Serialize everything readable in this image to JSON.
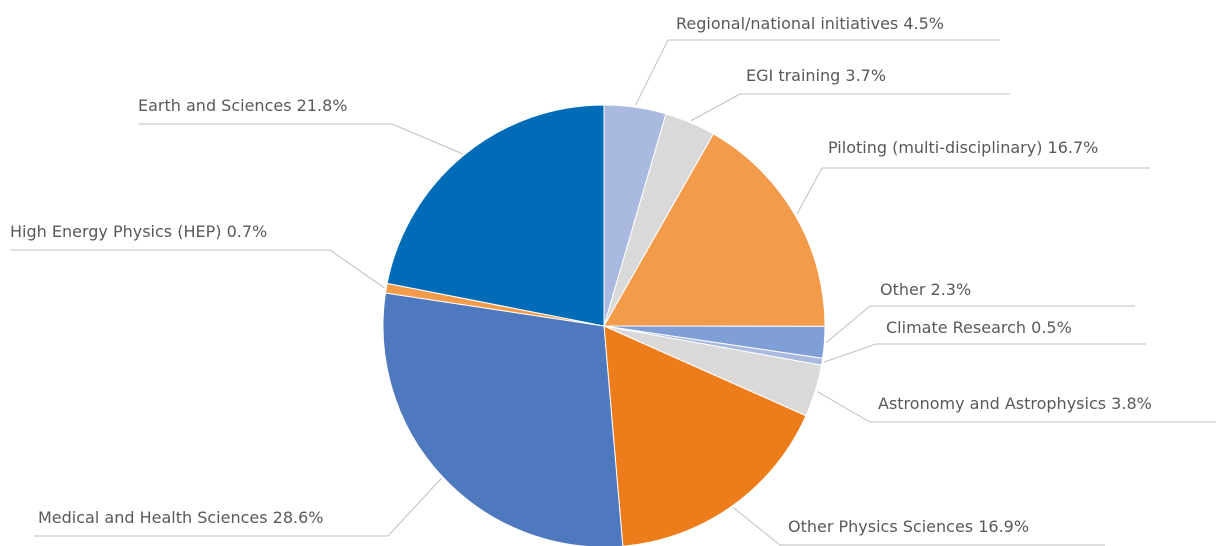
{
  "chart_data": {
    "type": "pie",
    "categories": [
      "Regional/national initiatives",
      "EGI training",
      "Piloting (multi-disciplinary)",
      "Other",
      "Climate Research",
      "Astronomy and Astrophysics",
      "Other Physics Sciences",
      "Medical and Health Sciences",
      "High Energy Physics (HEP)",
      "Earth and Sciences"
    ],
    "values": [
      4.5,
      3.7,
      16.7,
      2.3,
      0.5,
      3.8,
      16.9,
      28.6,
      0.7,
      21.8
    ],
    "value_labels": [
      "4.5%",
      "3.7%",
      "16.7%",
      "2.3%",
      "0.5%",
      "3.8%",
      "16.9%",
      "28.6%",
      "0.7%",
      "21.8%"
    ],
    "colors": [
      "#aab9df",
      "#d9d9d9",
      "#f29b4a",
      "#7f9fd6",
      "#aab9df",
      "#d9d9d9",
      "#ed7d1a",
      "#4e79bf",
      "#f29b4a",
      "#006bb6"
    ]
  }
}
